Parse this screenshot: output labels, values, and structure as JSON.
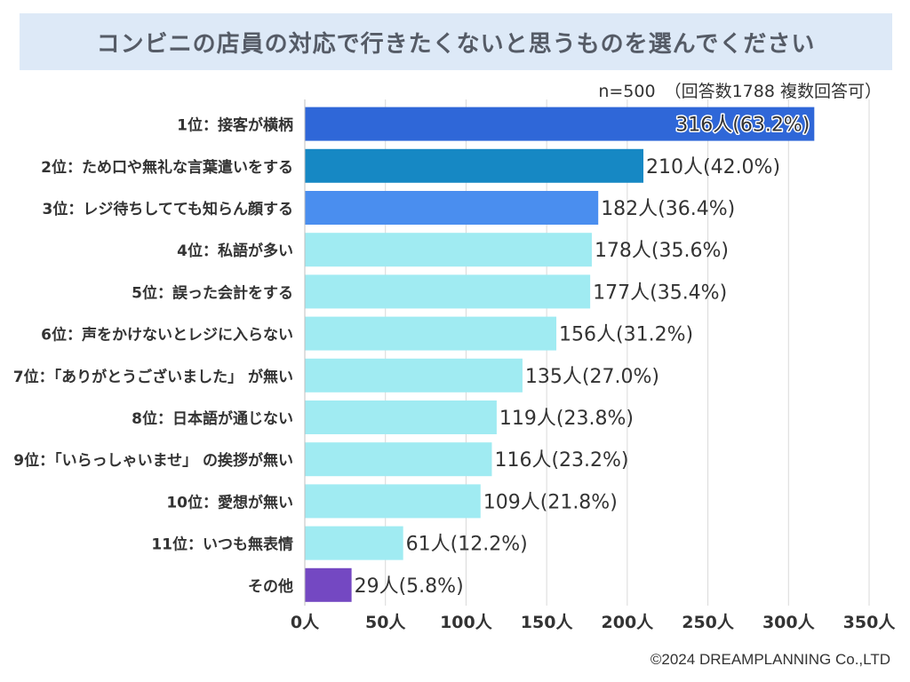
{
  "title": "コンビニの店員の対応で行きたくないと思うものを選んでください",
  "sample": {
    "n_label": "n=500",
    "responses": "（回答数1788  複数回答可）"
  },
  "copyright": "©2024 DREAMPLANNING Co.,LTD",
  "colors": {
    "rank1": "#2f67d8",
    "rank2": "#1688c4",
    "rank3": "#4a8eef",
    "default": "#a0ebf2",
    "other": "#7448c2",
    "grid": "#d9d9d9"
  },
  "chart_data": {
    "type": "bar",
    "orientation": "horizontal",
    "title": "コンビニの店員の対応で行きたくないと思うものを選んでください",
    "xlim": [
      0,
      350
    ],
    "xticks": [
      "0人",
      "50人",
      "100人",
      "150人",
      "200人",
      "250人",
      "300人",
      "350人"
    ],
    "xtick_values": [
      0,
      50,
      100,
      150,
      200,
      250,
      300,
      350
    ],
    "categories": [
      "1位：接客が横柄",
      "2位：ため口や無礼な言葉遣いをする",
      "3位：レジ待ちしてても知らん顔する",
      "4位：私語が多い",
      "5位：誤った会計をする",
      "6位：声をかけないとレジに入らない",
      "7位：「ありがとうございました」 が無い",
      "8位：日本語が通じない",
      "9位：「いらっしゃいませ」 の挨拶が無い",
      "10位：愛想が無い",
      "11位：いつも無表情",
      "その他"
    ],
    "values": [
      316,
      210,
      182,
      178,
      177,
      156,
      135,
      119,
      116,
      109,
      61,
      29
    ],
    "data_labels": [
      "316人(63.2%)",
      "210人(42.0%)",
      "182人(36.4%)",
      "178人(35.6%)",
      "177人(35.4%)",
      "156人(31.2%)",
      "135人(27.0%)",
      "119人(23.8%)",
      "116人(23.2%)",
      "109人(21.8%)",
      "61人(12.2%)",
      "29人(5.8%)"
    ],
    "bar_colors": [
      "rank1",
      "rank2",
      "rank3",
      "default",
      "default",
      "default",
      "default",
      "default",
      "default",
      "default",
      "default",
      "other"
    ]
  }
}
